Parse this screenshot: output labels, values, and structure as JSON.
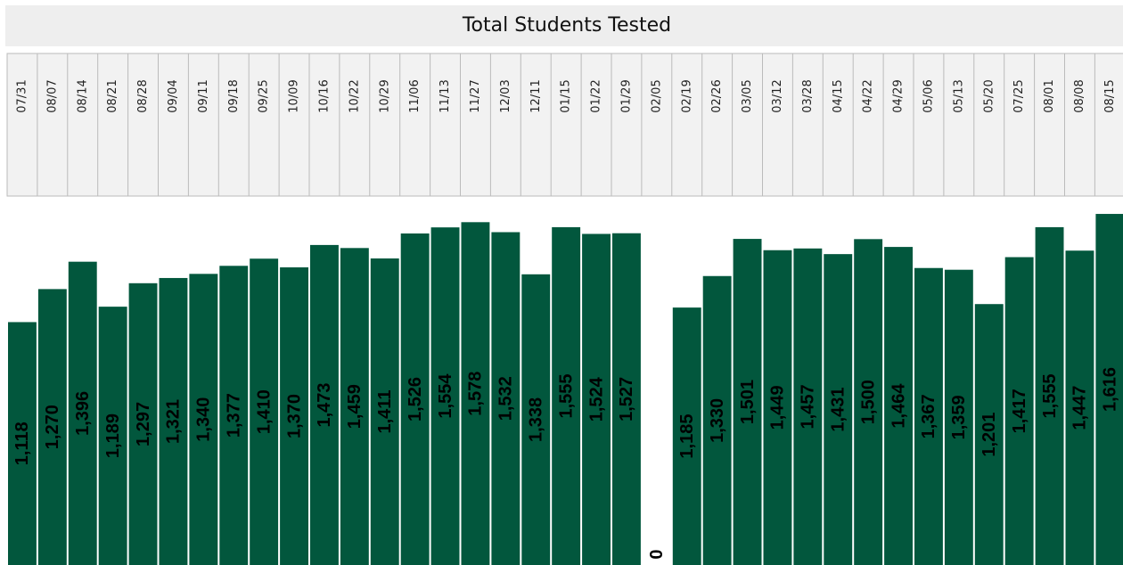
{
  "chart_data": {
    "type": "bar",
    "title": "Total Students Tested",
    "categories": [
      "07/31",
      "08/07",
      "08/14",
      "08/21",
      "08/28",
      "09/04",
      "09/11",
      "09/18",
      "09/25",
      "10/09",
      "10/16",
      "10/22",
      "10/29",
      "11/06",
      "11/13",
      "11/27",
      "12/03",
      "12/11",
      "01/15",
      "01/22",
      "01/29",
      "02/05",
      "02/19",
      "02/26",
      "03/05",
      "03/12",
      "03/28",
      "04/15",
      "04/22",
      "04/29",
      "05/06",
      "05/13",
      "05/20",
      "07/25",
      "08/01",
      "08/08",
      "08/15"
    ],
    "values": [
      1118,
      1270,
      1396,
      1189,
      1297,
      1321,
      1340,
      1377,
      1410,
      1370,
      1473,
      1459,
      1411,
      1526,
      1554,
      1578,
      1532,
      1338,
      1555,
      1524,
      1527,
      0,
      1185,
      1330,
      1501,
      1449,
      1457,
      1431,
      1500,
      1464,
      1367,
      1359,
      1201,
      1417,
      1555,
      1447,
      1616
    ],
    "value_labels": [
      "1,118",
      "1,270",
      "1,396",
      "1,189",
      "1,297",
      "1,321",
      "1,340",
      "1,377",
      "1,410",
      "1,370",
      "1,473",
      "1,459",
      "1,411",
      "1,526",
      "1,554",
      "1,578",
      "1,532",
      "1,338",
      "1,555",
      "1,524",
      "1,527",
      "0",
      "1,185",
      "1,330",
      "1,501",
      "1,449",
      "1,457",
      "1,431",
      "1,500",
      "1,464",
      "1,367",
      "1,359",
      "1,201",
      "1,417",
      "1,555",
      "1,447",
      "1,616"
    ],
    "color": "#02573d"
  }
}
